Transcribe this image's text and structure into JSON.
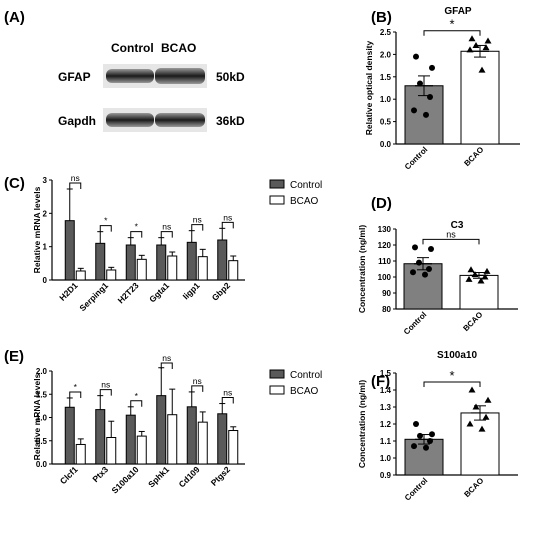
{
  "panel_a": {
    "label": "(A)",
    "col_headers": [
      "Control",
      "BCAO"
    ],
    "rows": [
      {
        "protein": "GFAP",
        "size": "50kD"
      },
      {
        "protein": "Gapdh",
        "size": "36kD"
      }
    ]
  },
  "chart_data": [
    {
      "id": "B",
      "panel": "(B)",
      "type": "bar",
      "title": "GFAP",
      "ylabel": "Relative optical density",
      "xlabel": "",
      "ylim": [
        0,
        2.5
      ],
      "yticks": [
        0.0,
        0.5,
        1.0,
        1.5,
        2.0,
        2.5
      ],
      "categories": [
        "Control",
        "BCAO"
      ],
      "values": [
        1.3,
        2.07
      ],
      "errors": [
        0.22,
        0.13
      ],
      "points": [
        [
          1.95,
          1.7,
          1.35,
          1.05,
          0.75,
          0.65
        ],
        [
          2.35,
          2.3,
          2.2,
          2.15,
          2.1,
          1.65
        ]
      ],
      "marker": [
        "circle",
        "triangle"
      ],
      "fill": [
        "#808080",
        "#ffffff"
      ],
      "significance": "*"
    },
    {
      "id": "C",
      "panel": "(C)",
      "type": "bar",
      "title": "",
      "ylabel": "Relative mRNA levels",
      "xlabel": "",
      "ylim": [
        0,
        3
      ],
      "yticks": [
        0,
        1,
        2,
        3
      ],
      "categories": [
        "H2D1",
        "Serping1",
        "H2T23",
        "Ggta1",
        "Iigp1",
        "Gbp2"
      ],
      "series": [
        {
          "name": "Control",
          "values": [
            1.78,
            1.1,
            1.05,
            1.05,
            1.13,
            1.2
          ],
          "errors": [
            0.95,
            0.35,
            0.22,
            0.22,
            0.35,
            0.35
          ]
        },
        {
          "name": "BCAO",
          "values": [
            0.27,
            0.3,
            0.62,
            0.72,
            0.7,
            0.58
          ],
          "errors": [
            0.08,
            0.08,
            0.12,
            0.12,
            0.22,
            0.14
          ]
        }
      ],
      "significance": [
        "ns",
        "*",
        "*",
        "ns",
        "ns",
        "ns"
      ]
    },
    {
      "id": "D",
      "panel": "(D)",
      "type": "bar",
      "title": "C3",
      "ylabel": "Concentration (ng/ml)",
      "xlabel": "",
      "ylim": [
        80,
        130
      ],
      "yticks": [
        80,
        90,
        100,
        110,
        120,
        130
      ],
      "categories": [
        "Control",
        "BCAO"
      ],
      "values": [
        108.3,
        101
      ],
      "errors": [
        3.8,
        1.8
      ],
      "points": [
        [
          118.5,
          117.5,
          109,
          105,
          103,
          101.5
        ],
        [
          104.5,
          103.5,
          101.5,
          100,
          98.5,
          97.5
        ]
      ],
      "marker": [
        "circle",
        "triangle"
      ],
      "fill": [
        "#808080",
        "#ffffff"
      ],
      "significance": "ns"
    },
    {
      "id": "E",
      "panel": "(E)",
      "type": "bar",
      "title": "",
      "ylabel": "Relative mRNA levels",
      "xlabel": "",
      "ylim": [
        0,
        2
      ],
      "yticks": [
        0.0,
        0.5,
        1.0,
        1.5,
        2.0
      ],
      "categories": [
        "Clcf1",
        "Ptx3",
        "S100a10",
        "Sphk1",
        "Cd109",
        "Ptgs2"
      ],
      "series": [
        {
          "name": "Control",
          "values": [
            1.22,
            1.17,
            1.05,
            1.47,
            1.23,
            1.08
          ],
          "errors": [
            0.2,
            0.3,
            0.18,
            0.6,
            0.32,
            0.22
          ]
        },
        {
          "name": "BCAO",
          "values": [
            0.42,
            0.57,
            0.6,
            1.06,
            0.9,
            0.72
          ],
          "errors": [
            0.12,
            0.35,
            0.1,
            0.55,
            0.22,
            0.08
          ]
        }
      ],
      "significance": [
        "*",
        "ns",
        "*",
        "ns",
        "ns",
        "ns"
      ]
    },
    {
      "id": "F",
      "panel": "(F)",
      "type": "bar",
      "title": "S100a10",
      "ylabel": "Concentration (ng/ml)",
      "xlabel": "",
      "ylim": [
        0.9,
        1.5
      ],
      "yticks": [
        0.9,
        1.0,
        1.1,
        1.2,
        1.3,
        1.4,
        1.5
      ],
      "categories": [
        "Control",
        "BCAO"
      ],
      "values": [
        1.11,
        1.265
      ],
      "errors": [
        0.028,
        0.042
      ],
      "points": [
        [
          1.2,
          1.14,
          1.13,
          1.1,
          1.07,
          1.06
        ],
        [
          1.4,
          1.34,
          1.3,
          1.24,
          1.2,
          1.17
        ]
      ],
      "marker": [
        "circle",
        "triangle"
      ],
      "fill": [
        "#808080",
        "#ffffff"
      ],
      "significance": "*"
    }
  ],
  "legend_colors": {
    "Control": "#5a5a5a",
    "BCAO": "#ffffff"
  }
}
